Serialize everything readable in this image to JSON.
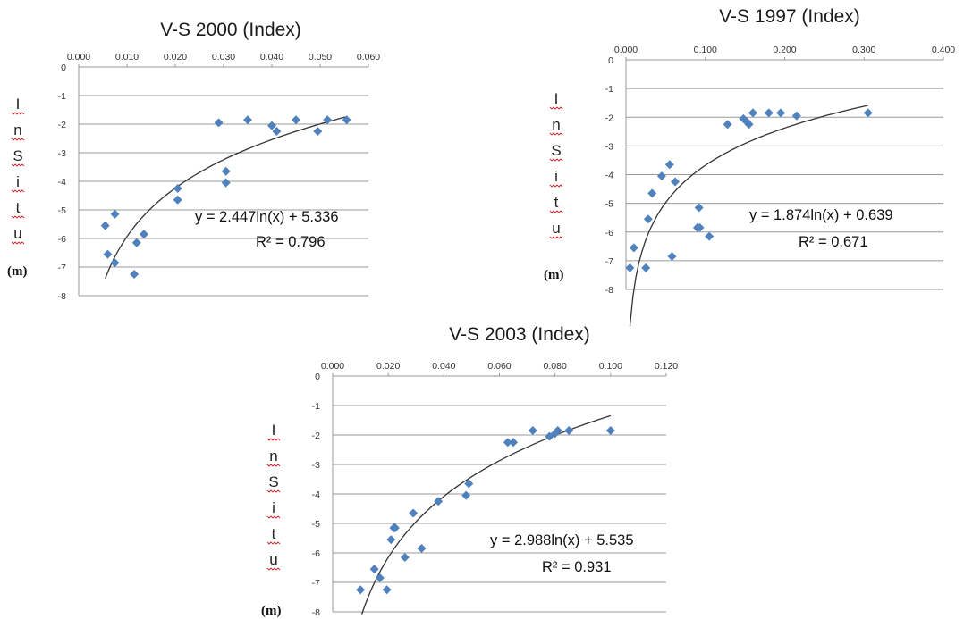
{
  "colors": {
    "marker": "#4f81bd",
    "trendline": "#333333",
    "grid": "#9a9a9a"
  },
  "chart_data": [
    {
      "type": "scatter",
      "title": "V-S 2000 (Index)",
      "ylabel_letters": [
        "I",
        "n",
        "S",
        "i",
        "t",
        "u"
      ],
      "ylabel_unit": "(m)",
      "x_ticks": [
        "0.000",
        "0.010",
        "0.020",
        "0.030",
        "0.040",
        "0.050",
        "0.060"
      ],
      "y_ticks": [
        "0",
        "-1",
        "-2",
        "-3",
        "-4",
        "-5",
        "-6",
        "-7",
        "-8"
      ],
      "xlim": [
        0,
        0.06
      ],
      "ylim": [
        -8,
        0
      ],
      "grid": true,
      "trendline": {
        "type": "log",
        "a": 2.447,
        "b": 5.336,
        "x_range": [
          0.0055,
          0.0555
        ]
      },
      "equation": "y = 2.447ln(x) + 5.336",
      "r2_label": "R² = 0.796",
      "x": [
        0.0055,
        0.006,
        0.0075,
        0.0075,
        0.0115,
        0.012,
        0.0135,
        0.0205,
        0.0205,
        0.029,
        0.0305,
        0.0305,
        0.035,
        0.04,
        0.041,
        0.045,
        0.0495,
        0.0515,
        0.0555
      ],
      "y": [
        -5.55,
        -6.55,
        -5.15,
        -6.85,
        -7.25,
        -6.15,
        -5.85,
        -4.25,
        -4.65,
        -1.95,
        -3.65,
        -4.05,
        -1.85,
        -2.05,
        -2.25,
        -1.85,
        -2.25,
        -1.85,
        -1.85
      ]
    },
    {
      "type": "scatter",
      "title": "V-S 1997 (Index)",
      "ylabel_letters": [
        "I",
        "n",
        "S",
        "i",
        "t",
        "u"
      ],
      "ylabel_unit": "(m)",
      "x_ticks": [
        "0.000",
        "0.100",
        "0.200",
        "0.300",
        "0.400"
      ],
      "y_ticks": [
        "0",
        "-1",
        "-2",
        "-3",
        "-4",
        "-5",
        "-6",
        "-7",
        "-8"
      ],
      "xlim": [
        0,
        0.4
      ],
      "ylim": [
        -8,
        0
      ],
      "grid": true,
      "trendline": {
        "type": "log",
        "a": 1.874,
        "b": 0.639,
        "x_range": [
          0.005,
          0.305
        ]
      },
      "equation": "y = 1.874ln(x) + 0.639",
      "r2_label": "R² = 0.671",
      "x": [
        0.005,
        0.01,
        0.025,
        0.028,
        0.033,
        0.045,
        0.055,
        0.058,
        0.062,
        0.09,
        0.092,
        0.093,
        0.105,
        0.128,
        0.148,
        0.152,
        0.155,
        0.16,
        0.18,
        0.195,
        0.215,
        0.305
      ],
      "y": [
        -7.25,
        -6.55,
        -7.25,
        -5.55,
        -4.65,
        -4.05,
        -3.65,
        -6.85,
        -4.25,
        -5.85,
        -5.15,
        -5.85,
        -6.15,
        -2.25,
        -2.05,
        -2.15,
        -2.25,
        -1.85,
        -1.85,
        -1.85,
        -1.95,
        -1.85
      ]
    },
    {
      "type": "scatter",
      "title": "V-S 2003 (Index)",
      "ylabel_letters": [
        "I",
        "n",
        "S",
        "i",
        "t",
        "u"
      ],
      "ylabel_unit": "(m)",
      "x_ticks": [
        "0.000",
        "0.020",
        "0.040",
        "0.060",
        "0.080",
        "0.100",
        "0.120"
      ],
      "y_ticks": [
        "0",
        "-1",
        "-2",
        "-3",
        "-4",
        "-5",
        "-6",
        "-7",
        "-8"
      ],
      "xlim": [
        0,
        0.12
      ],
      "ylim": [
        -8,
        0
      ],
      "grid": true,
      "trendline": {
        "type": "log",
        "a": 2.988,
        "b": 5.535,
        "x_range": [
          0.0105,
          0.1
        ]
      },
      "equation": "y = 2.988ln(x) + 5.535",
      "r2_label": "R² = 0.931",
      "x": [
        0.01,
        0.015,
        0.017,
        0.0195,
        0.021,
        0.022,
        0.0225,
        0.026,
        0.029,
        0.032,
        0.038,
        0.048,
        0.049,
        0.063,
        0.065,
        0.072,
        0.078,
        0.08,
        0.081,
        0.085,
        0.1
      ],
      "y": [
        -7.25,
        -6.55,
        -6.85,
        -7.25,
        -5.55,
        -5.15,
        -5.15,
        -6.15,
        -4.65,
        -5.85,
        -4.25,
        -4.05,
        -3.65,
        -2.25,
        -2.25,
        -1.85,
        -2.05,
        -1.95,
        -1.85,
        -1.85,
        -1.85
      ]
    }
  ]
}
